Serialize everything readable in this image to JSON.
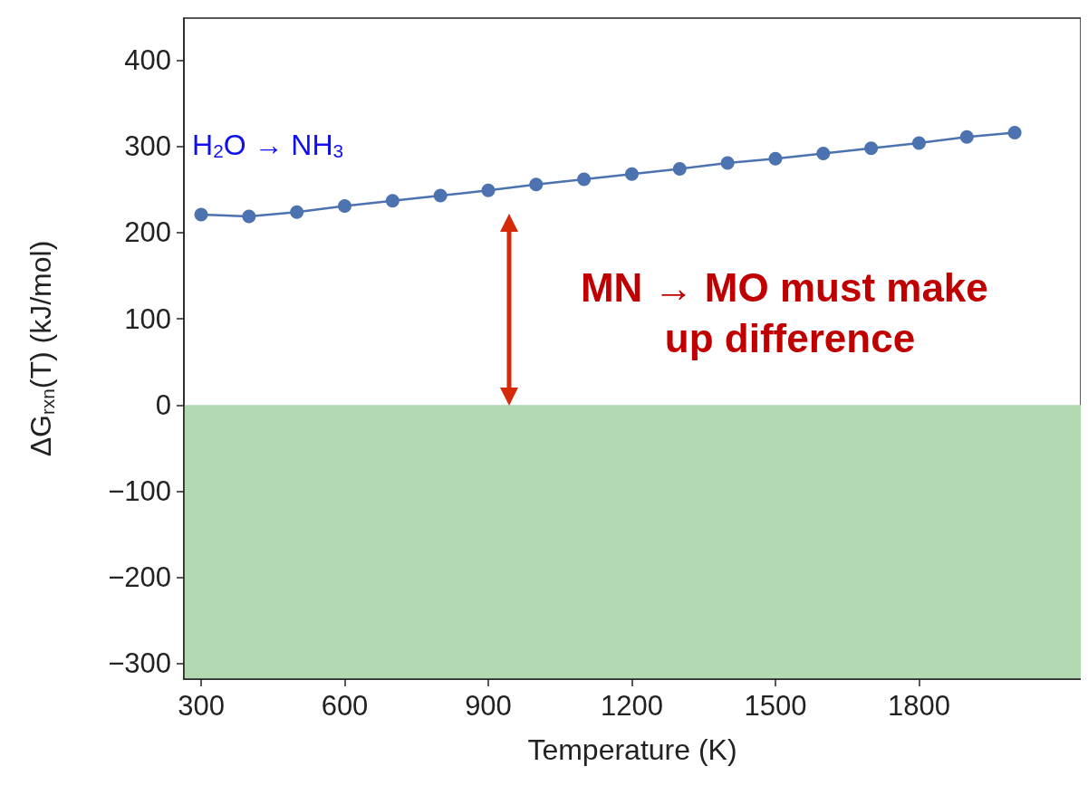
{
  "chart_data": {
    "type": "line",
    "xlabel": "Temperature (K)",
    "ylabel": "ΔG$_{rxn}$(T) (kJ/mol)",
    "x": [
      300,
      400,
      500,
      600,
      700,
      800,
      900,
      1000,
      1100,
      1200,
      1300,
      1400,
      1500,
      1600,
      1700,
      1800,
      1900,
      2000
    ],
    "series": [
      {
        "name": "H$_{2}$O → NH$_{3}$",
        "color": "#4c72b0",
        "values": [
          221,
          219,
          224,
          231,
          237,
          243,
          249,
          256,
          262,
          268,
          274,
          281,
          286,
          292,
          298,
          304,
          311,
          316
        ]
      }
    ],
    "marker": "circle",
    "xlim": [
      264,
      2138
    ],
    "xticks": [
      300,
      600,
      900,
      1200,
      1500,
      1800
    ],
    "ylim": [
      -318,
      449
    ],
    "yticks": [
      -300,
      -200,
      -100,
      0,
      100,
      200,
      300,
      400
    ],
    "bands": [
      {
        "axis": "y",
        "from": -318,
        "to": 0,
        "color": "#b3d9b3"
      }
    ],
    "annotations": [
      "MN → MO must make up difference"
    ],
    "grid": false
  }
}
